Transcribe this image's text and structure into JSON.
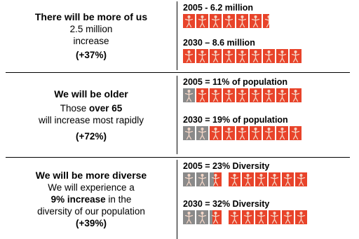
{
  "rows": [
    {
      "heading": "There will be more of us",
      "lines": [
        "2.5 million",
        "increase"
      ],
      "percent": "(+37%)",
      "blocks": [
        {
          "label": "2005 - 6.2 million",
          "icons": [
            "r",
            "r",
            "r",
            "r",
            "r",
            "r",
            "rh"
          ]
        },
        {
          "label": "2030 – 8.6 million",
          "icons": [
            "r",
            "r",
            "r",
            "r",
            "r",
            "r",
            "r",
            "r",
            "r"
          ]
        }
      ]
    },
    {
      "heading": "We will be older",
      "line1_pre": "Those ",
      "line1_bold": "over 65",
      "line2": "will increase most rapidly",
      "percent": "(+72%)",
      "blocks": [
        {
          "label": "2005  = 11% of population",
          "icons": [
            "g",
            "r",
            "r",
            "r",
            "r",
            "r",
            "r",
            "r",
            "r"
          ]
        },
        {
          "label": "2030 = 19% of population",
          "icons": [
            "g",
            "g",
            "r",
            "r",
            "r",
            "r",
            "r",
            "r",
            "r"
          ]
        }
      ]
    },
    {
      "heading": "We will be more diverse",
      "line1": "We will experience a",
      "line2_bold": "9% increase",
      "line2_post": " in the",
      "line3": "diversity of our population",
      "percent": "(+39%)",
      "blocks": [
        {
          "label": "2005 = 23% Diversity",
          "icons": [
            "g",
            "g",
            "gr",
            "r",
            "r",
            "r",
            "r",
            "r",
            "r"
          ]
        },
        {
          "label": "2030 = 32% Diversity",
          "icons": [
            "g",
            "g",
            "gr2",
            "r",
            "r",
            "r",
            "r",
            "r",
            "r"
          ]
        }
      ]
    }
  ],
  "colors": {
    "red": "#e8432a",
    "gray": "#8a8a8a",
    "figure": "#f4d7c8"
  }
}
